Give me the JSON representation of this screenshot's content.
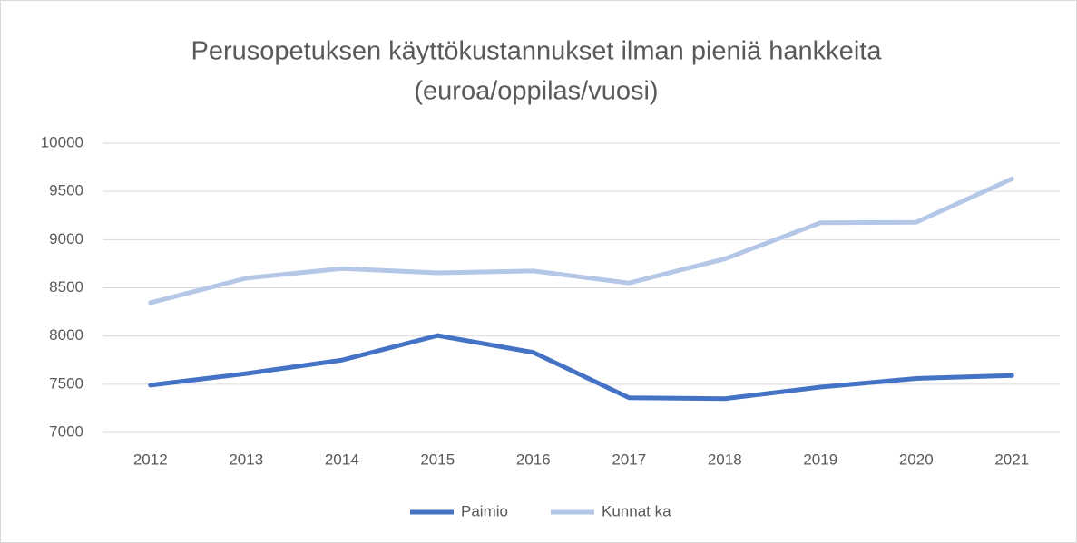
{
  "chart_data": {
    "type": "line",
    "title": "Perusopetuksen  käyttökustannukset ilman pieniä hankkeita",
    "subtitle": "(euroa/oppilas/vuosi)",
    "categories": [
      "2012",
      "2013",
      "2014",
      "2015",
      "2016",
      "2017",
      "2018",
      "2019",
      "2020",
      "2021"
    ],
    "series": [
      {
        "name": "Paimio",
        "color": "#4472c4",
        "values": [
          7490,
          7610,
          7750,
          8005,
          7830,
          7360,
          7350,
          7470,
          7560,
          7590
        ]
      },
      {
        "name": "Kunnat ka",
        "color": "#b4c7e7",
        "values": [
          8345,
          8600,
          8700,
          8655,
          8675,
          8550,
          8800,
          9175,
          9180,
          9630
        ]
      }
    ],
    "ylim": [
      7000,
      10000
    ],
    "yticks": [
      7000,
      7500,
      8000,
      8500,
      9000,
      9500,
      10000
    ],
    "grid": true,
    "legend": "bottom"
  }
}
